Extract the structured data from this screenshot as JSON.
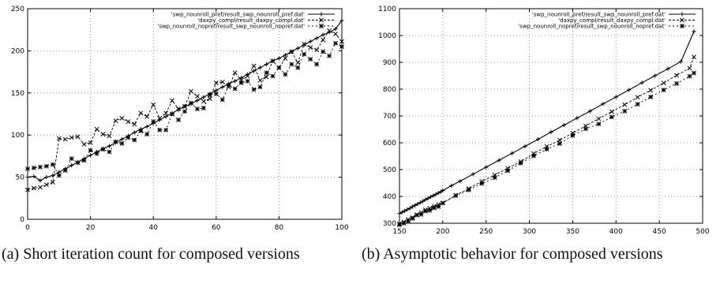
{
  "chart_data": [
    {
      "type": "line",
      "caption": "(a) Short iteration count for composed versions",
      "xlim": [
        0,
        100
      ],
      "ylim": [
        0,
        250
      ],
      "xticks": [
        0,
        20,
        40,
        60,
        80,
        100
      ],
      "yticks": [
        0,
        50,
        100,
        150,
        200,
        250
      ],
      "grid": true,
      "legend_position": "top-right",
      "series": [
        {
          "name": "'swp_nounroll_pref/result_swp_nounroll_pref.dat'",
          "marker": "plus",
          "dash": "",
          "x": [
            0,
            2,
            4,
            6,
            8,
            10,
            12,
            14,
            16,
            18,
            20,
            22,
            24,
            26,
            28,
            30,
            32,
            34,
            36,
            38,
            40,
            42,
            44,
            46,
            48,
            50,
            52,
            54,
            56,
            58,
            60,
            62,
            64,
            66,
            68,
            70,
            72,
            74,
            76,
            78,
            80,
            82,
            84,
            86,
            88,
            90,
            92,
            94,
            96,
            98,
            100
          ],
          "y": [
            50,
            51,
            46,
            50,
            52,
            56,
            60,
            64,
            68,
            72,
            76,
            80,
            84,
            87,
            91,
            95,
            99,
            103,
            107,
            110,
            114,
            118,
            122,
            126,
            130,
            134,
            137,
            141,
            145,
            149,
            153,
            157,
            161,
            164,
            168,
            172,
            176,
            180,
            184,
            188,
            191,
            195,
            199,
            203,
            207,
            211,
            215,
            219,
            222,
            226,
            236
          ]
        },
        {
          "name": "'daxpy_compl/result_daxpy_compl.dat'",
          "marker": "x",
          "dash": "3,2",
          "x": [
            0,
            2,
            4,
            6,
            8,
            10,
            12,
            14,
            16,
            18,
            20,
            22,
            24,
            26,
            28,
            30,
            32,
            34,
            36,
            38,
            40,
            42,
            44,
            46,
            48,
            50,
            52,
            54,
            56,
            58,
            60,
            62,
            64,
            66,
            68,
            70,
            72,
            74,
            76,
            78,
            80,
            82,
            84,
            86,
            88,
            90,
            92,
            94,
            96,
            98,
            100
          ],
          "y": [
            35,
            37,
            38,
            41,
            44,
            96,
            95,
            97,
            98,
            89,
            91,
            107,
            101,
            99,
            117,
            120,
            116,
            113,
            126,
            122,
            136,
            120,
            126,
            141,
            131,
            134,
            152,
            146,
            140,
            143,
            162,
            163,
            157,
            174,
            165,
            170,
            182,
            165,
            169,
            188,
            180,
            191,
            199,
            186,
            208,
            204,
            201,
            213,
            224,
            220,
            211
          ]
        },
        {
          "name": "'swp_nounroll_nopref/result_swp_nounroll_nopref.dat'",
          "marker": "star",
          "dash": "2,3",
          "x": [
            0,
            2,
            4,
            6,
            8,
            10,
            12,
            14,
            16,
            18,
            20,
            22,
            24,
            26,
            28,
            30,
            32,
            34,
            36,
            38,
            40,
            42,
            44,
            46,
            48,
            50,
            52,
            54,
            56,
            58,
            60,
            62,
            64,
            66,
            68,
            70,
            72,
            74,
            76,
            78,
            80,
            82,
            84,
            86,
            88,
            90,
            92,
            94,
            96,
            98,
            100
          ],
          "y": [
            60,
            61,
            62,
            63,
            65,
            52,
            58,
            72,
            67,
            70,
            82,
            78,
            83,
            80,
            92,
            90,
            97,
            94,
            105,
            101,
            116,
            106,
            106,
            125,
            118,
            128,
            138,
            131,
            132,
            148,
            149,
            142,
            159,
            155,
            162,
            164,
            154,
            157,
            174,
            170,
            180,
            172,
            184,
            180,
            196,
            190,
            184,
            199,
            194,
            209,
            205
          ]
        }
      ]
    },
    {
      "type": "line",
      "caption": "(b) Asymptotic behavior for composed versions",
      "xlim": [
        150,
        500
      ],
      "ylim": [
        300,
        1100
      ],
      "xticks": [
        150,
        200,
        250,
        300,
        350,
        400,
        450,
        500
      ],
      "yticks": [
        300,
        400,
        500,
        600,
        700,
        800,
        900,
        1000,
        1100
      ],
      "grid": true,
      "legend_position": "top-right",
      "series": [
        {
          "name": "'swp_nounroll_pref/result_swp_nounroll_pref.dat'",
          "marker": "plus",
          "dash": "",
          "x": [
            150,
            153,
            156,
            159,
            162,
            165,
            168,
            171,
            174,
            177,
            180,
            183,
            186,
            189,
            192,
            195,
            198,
            200,
            210,
            220,
            235,
            250,
            265,
            280,
            295,
            310,
            325,
            340,
            355,
            370,
            385,
            400,
            415,
            430,
            445,
            460,
            475,
            490
          ],
          "y": [
            336,
            341,
            346,
            351,
            356,
            362,
            367,
            372,
            377,
            382,
            388,
            393,
            398,
            403,
            408,
            413,
            418,
            422,
            440,
            457,
            483,
            509,
            535,
            561,
            587,
            613,
            640,
            666,
            692,
            718,
            745,
            771,
            797,
            824,
            850,
            876,
            903,
            1015
          ]
        },
        {
          "name": "'daxpy_compl/result_daxpy_compl.dat'",
          "marker": "x",
          "dash": "3,2",
          "x": [
            150,
            155,
            160,
            165,
            170,
            175,
            180,
            185,
            190,
            195,
            200,
            215,
            230,
            245,
            260,
            275,
            290,
            305,
            320,
            335,
            350,
            365,
            380,
            395,
            410,
            425,
            440,
            455,
            470,
            485,
            490
          ],
          "y": [
            298,
            305,
            314,
            321,
            332,
            340,
            350,
            356,
            363,
            370,
            376,
            404,
            429,
            456,
            480,
            505,
            530,
            560,
            586,
            610,
            636,
            663,
            690,
            716,
            742,
            770,
            796,
            823,
            852,
            878,
            920
          ]
        },
        {
          "name": "'swp_nounroll_nopref/result_swp_nounroll_nopref.dat'",
          "marker": "star",
          "dash": "2,3",
          "x": [
            150,
            155,
            160,
            165,
            170,
            175,
            180,
            185,
            190,
            195,
            200,
            215,
            230,
            245,
            260,
            275,
            290,
            305,
            320,
            335,
            350,
            365,
            380,
            395,
            410,
            425,
            440,
            455,
            470,
            485,
            490
          ],
          "y": [
            294,
            300,
            308,
            318,
            330,
            333,
            345,
            348,
            357,
            362,
            375,
            403,
            424,
            448,
            470,
            496,
            524,
            551,
            576,
            597,
            627,
            652,
            670,
            696,
            718,
            744,
            771,
            797,
            821,
            848,
            860
          ]
        }
      ]
    }
  ]
}
